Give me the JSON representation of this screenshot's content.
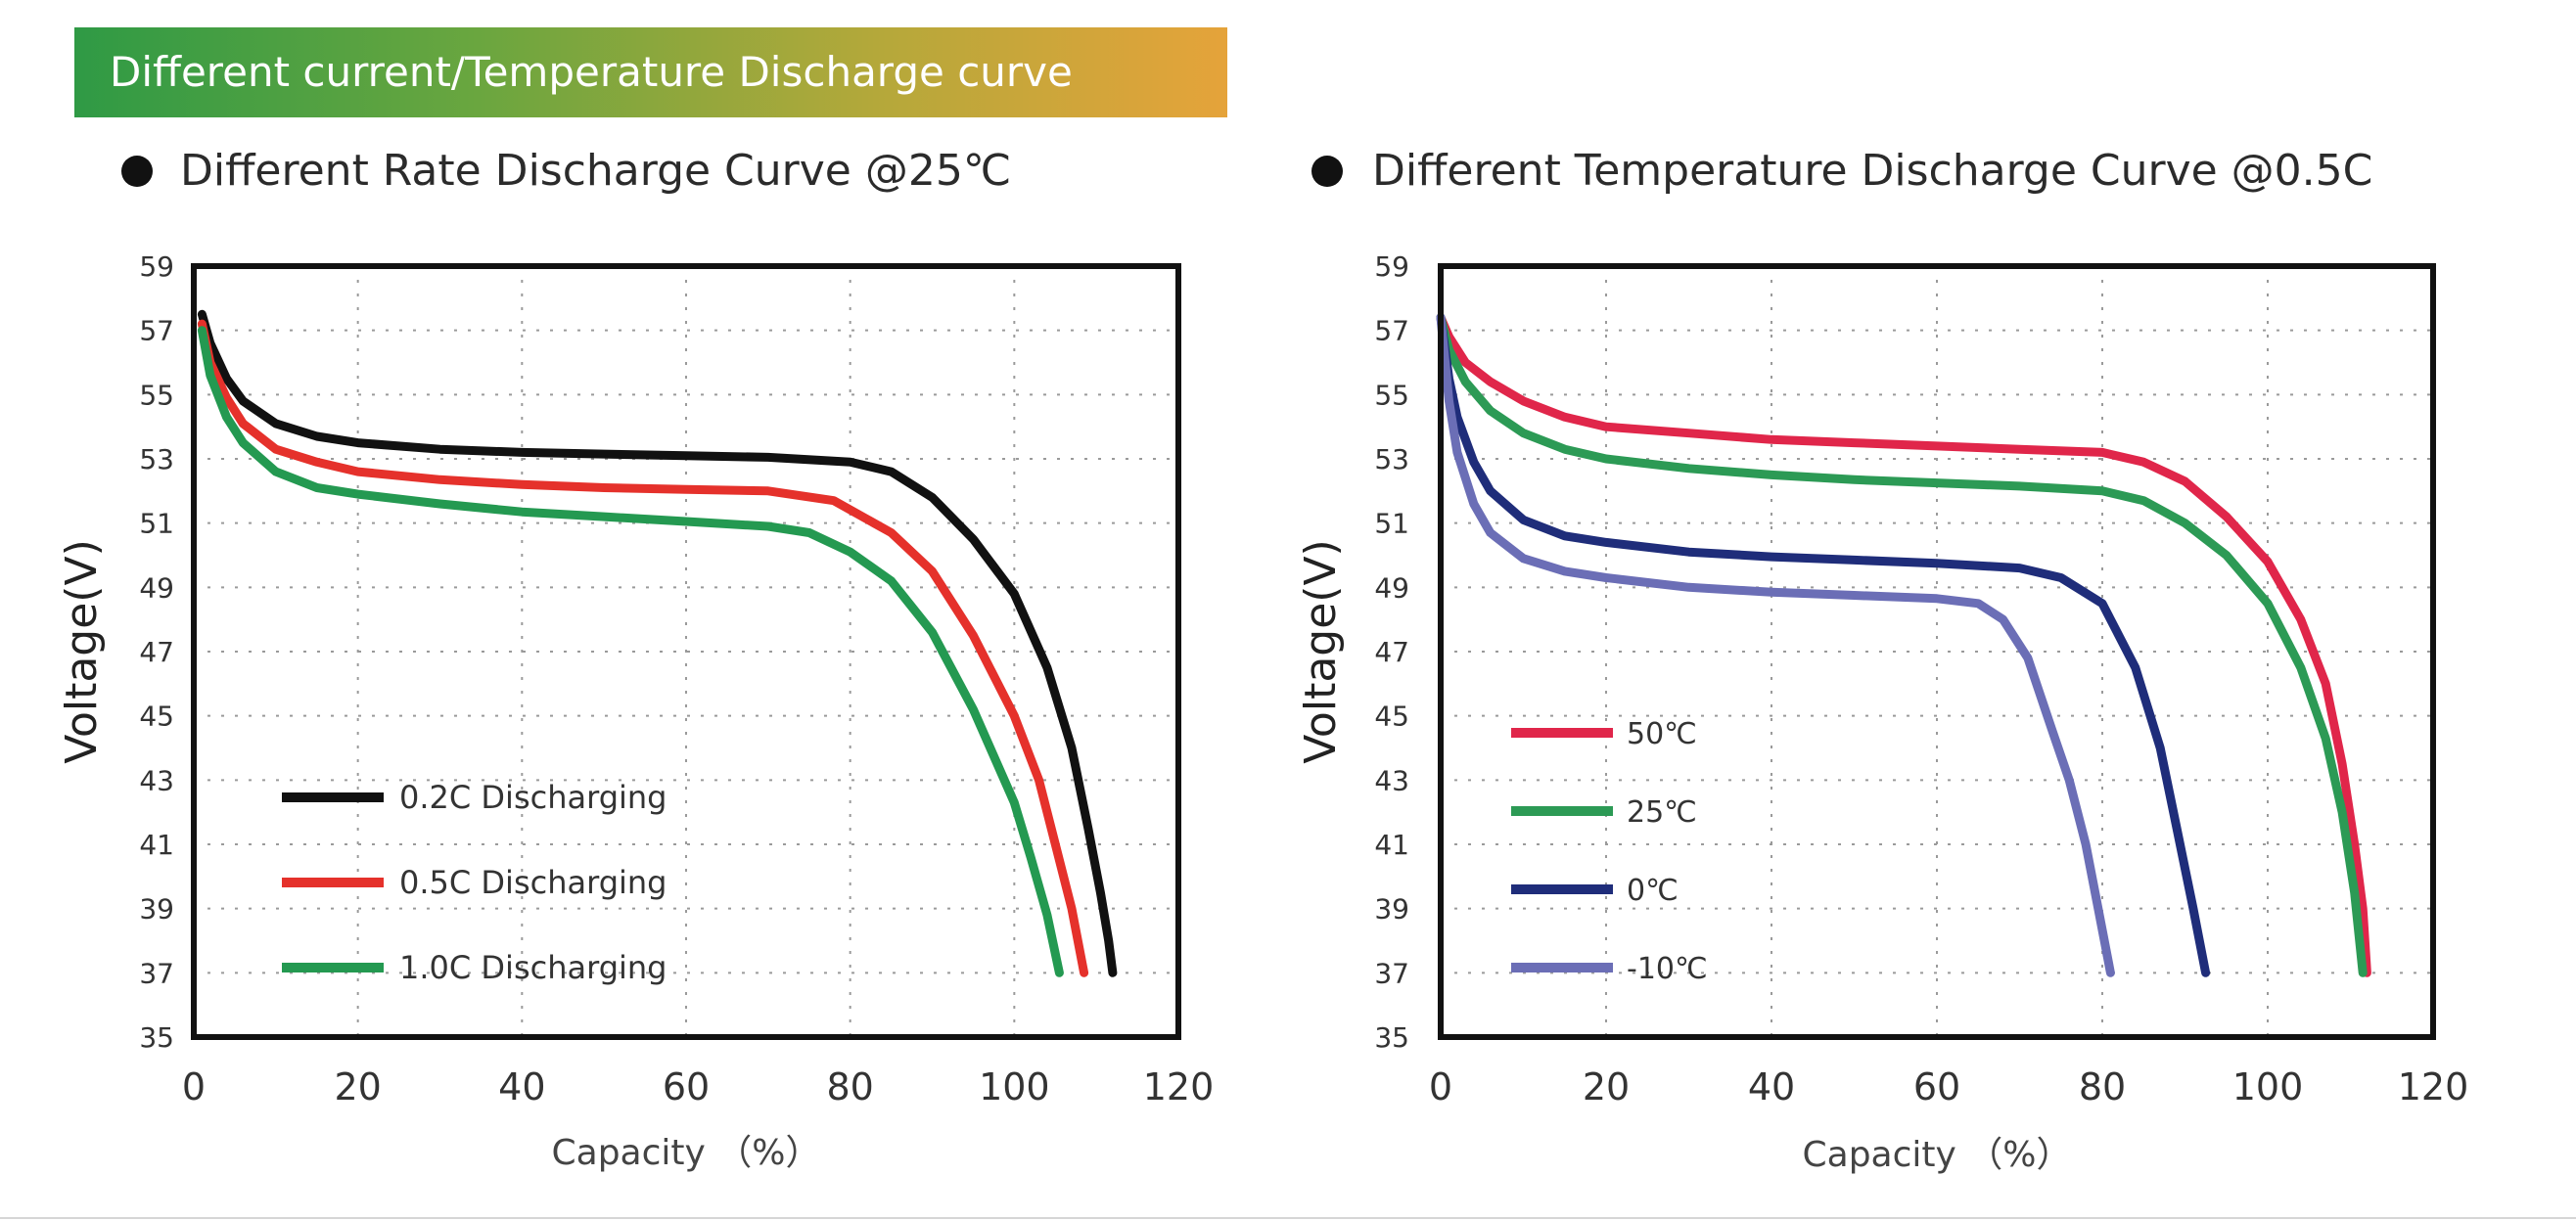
{
  "banner": {
    "title": "Different current/Temperature Discharge curve"
  },
  "chart_data": [
    {
      "type": "line",
      "title": "Different Rate Discharge Curve @25℃",
      "xlabel": "Capacity （%）",
      "ylabel": "Voltage(V)",
      "xlim": [
        0,
        120
      ],
      "ylim": [
        35,
        59
      ],
      "xticks": [
        "0",
        "20",
        "40",
        "60",
        "80",
        "100",
        "120"
      ],
      "yticks": [
        "35",
        "37",
        "39",
        "41",
        "43",
        "45",
        "47",
        "49",
        "51",
        "53",
        "55",
        "57",
        "59"
      ],
      "grid": true,
      "legend_position": "bottom-left",
      "series": [
        {
          "name": "0.2C Discharging",
          "color": "#111111",
          "x": [
            1,
            2,
            4,
            6,
            10,
            15,
            20,
            30,
            40,
            50,
            60,
            70,
            80,
            85,
            90,
            95,
            100,
            104,
            107,
            109,
            110.5,
            111.5,
            112
          ],
          "y": [
            57.5,
            56.6,
            55.5,
            54.8,
            54.1,
            53.7,
            53.5,
            53.3,
            53.2,
            53.15,
            53.1,
            53.05,
            52.9,
            52.6,
            51.8,
            50.5,
            48.8,
            46.5,
            44,
            41.5,
            39.5,
            38,
            37
          ]
        },
        {
          "name": "0.5C Discharging",
          "color": "#e5312b",
          "x": [
            1,
            2,
            4,
            6,
            10,
            15,
            20,
            30,
            40,
            50,
            60,
            70,
            78,
            85,
            90,
            95,
            100,
            103,
            105,
            107,
            108.5
          ],
          "y": [
            57.2,
            56,
            54.9,
            54.1,
            53.3,
            52.9,
            52.6,
            52.35,
            52.2,
            52.1,
            52.05,
            52,
            51.7,
            50.7,
            49.5,
            47.5,
            45,
            43,
            41,
            39,
            37
          ]
        },
        {
          "name": "1.0C Discharging",
          "color": "#249951",
          "x": [
            1,
            2,
            4,
            6,
            10,
            15,
            20,
            30,
            40,
            50,
            60,
            70,
            75,
            80,
            85,
            90,
            95,
            100,
            102,
            104,
            105.5
          ],
          "y": [
            57,
            55.6,
            54.3,
            53.5,
            52.6,
            52.1,
            51.9,
            51.6,
            51.35,
            51.2,
            51.05,
            50.9,
            50.7,
            50.1,
            49.2,
            47.6,
            45.2,
            42.3,
            40.6,
            38.8,
            37
          ]
        }
      ]
    },
    {
      "type": "line",
      "title": "Different Temperature Discharge Curve @0.5C",
      "xlabel": "Capacity （%）",
      "ylabel": "Voltage(V)",
      "xlim": [
        0,
        120
      ],
      "ylim": [
        35,
        59
      ],
      "xticks": [
        "0",
        "20",
        "40",
        "60",
        "80",
        "100",
        "120"
      ],
      "yticks": [
        "35",
        "37",
        "39",
        "41",
        "43",
        "45",
        "47",
        "49",
        "51",
        "53",
        "55",
        "57",
        "59"
      ],
      "grid": true,
      "legend_position": "left",
      "series": [
        {
          "name": "50℃",
          "color": "#e0264a",
          "x": [
            0,
            1,
            3,
            6,
            10,
            15,
            20,
            30,
            40,
            50,
            60,
            70,
            80,
            85,
            90,
            95,
            100,
            104,
            107,
            109,
            110.5,
            111.5,
            112
          ],
          "y": [
            57.4,
            56.8,
            56,
            55.4,
            54.8,
            54.3,
            54,
            53.8,
            53.6,
            53.5,
            53.4,
            53.3,
            53.2,
            52.9,
            52.3,
            51.2,
            49.8,
            48,
            46,
            43.5,
            41,
            39,
            37
          ]
        },
        {
          "name": "25℃",
          "color": "#2c9a55",
          "x": [
            0,
            1,
            3,
            6,
            10,
            15,
            20,
            30,
            40,
            50,
            60,
            70,
            80,
            85,
            90,
            95,
            100,
            104,
            107,
            109,
            110.5,
            111.5
          ],
          "y": [
            57.4,
            56.4,
            55.4,
            54.5,
            53.8,
            53.3,
            53,
            52.7,
            52.5,
            52.35,
            52.25,
            52.15,
            52,
            51.7,
            51,
            50,
            48.5,
            46.5,
            44.3,
            42,
            39.5,
            37
          ]
        },
        {
          "name": "0℃",
          "color": "#1f2d7a",
          "x": [
            0,
            1,
            2,
            4,
            6,
            10,
            15,
            20,
            30,
            40,
            50,
            60,
            70,
            75,
            80,
            84,
            87,
            89,
            91,
            92.5
          ],
          "y": [
            57.4,
            55.5,
            54.3,
            52.9,
            52,
            51.1,
            50.6,
            50.4,
            50.1,
            49.95,
            49.85,
            49.75,
            49.6,
            49.3,
            48.5,
            46.5,
            44,
            41.5,
            39,
            37
          ]
        },
        {
          "name": "-10℃",
          "color": "#6b6eb6",
          "x": [
            0,
            1,
            2,
            4,
            6,
            10,
            15,
            20,
            30,
            40,
            50,
            60,
            65,
            68,
            71,
            74,
            76,
            78,
            79.5,
            81
          ],
          "y": [
            57.4,
            54.8,
            53.2,
            51.6,
            50.7,
            49.9,
            49.5,
            49.3,
            49,
            48.85,
            48.75,
            48.65,
            48.5,
            48,
            46.8,
            44.5,
            43,
            41,
            39,
            37
          ]
        }
      ]
    }
  ]
}
